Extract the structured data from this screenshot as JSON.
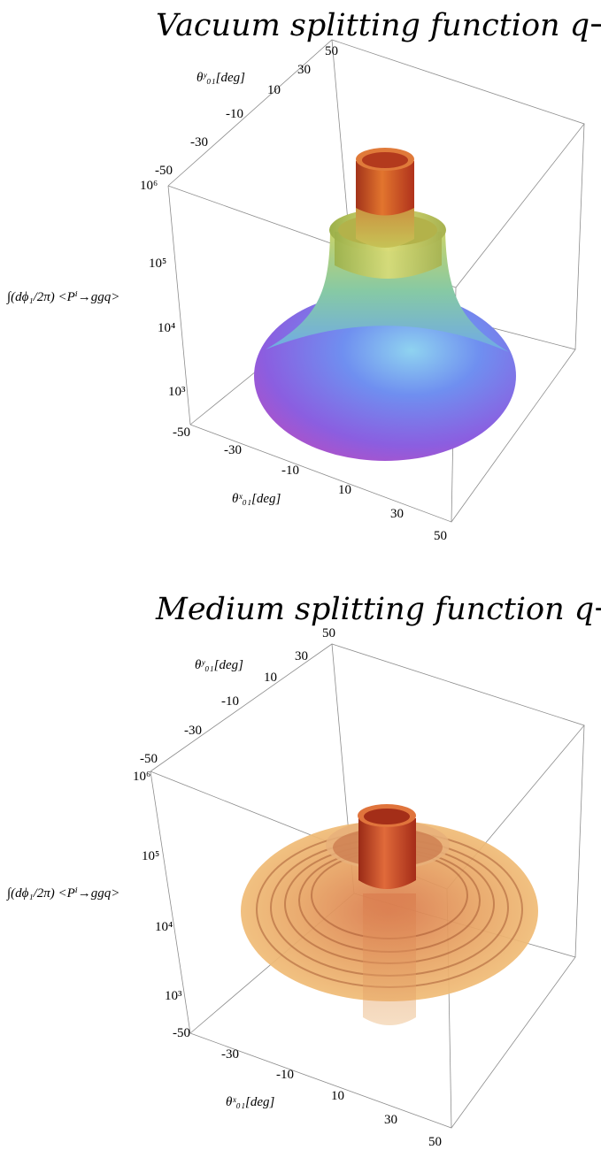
{
  "chart_data": [
    {
      "type": "surface3d",
      "title": "Vacuum splitting function q→ggq",
      "xlabel": "θˣ₀₁[deg]",
      "ylabel": "θʸ₀₁[deg]",
      "zlabel": "∫(dϕ₁/2π) <Pⁱ→ggq>",
      "x_ticks": [
        "-50",
        "-30",
        "-10",
        "10",
        "30",
        "50"
      ],
      "y_ticks": [
        "-50",
        "-30",
        "-10",
        "10",
        "30",
        "50"
      ],
      "z_ticks": [
        "10³",
        "10⁴",
        "10⁵",
        "10⁶"
      ],
      "xlim": [
        -50,
        50
      ],
      "ylim": [
        -50,
        50
      ],
      "zlim": [
        1000,
        1000000
      ],
      "zscale": "log",
      "colormap": [
        "#b24ec8",
        "#7a6cf0",
        "#6fa9f2",
        "#86d4a8",
        "#c9d36a",
        "#e08a40",
        "#c42a1a"
      ]
    },
    {
      "type": "surface3d",
      "title": "Medium splitting function q→ggq",
      "xlabel": "θˣ₀₁[deg]",
      "ylabel": "θʸ₀₁[deg]",
      "zlabel": "∫(dϕ₁/2π) <Pⁱ→ggq>",
      "x_ticks": [
        "-50",
        "-30",
        "-10",
        "10",
        "30",
        "50"
      ],
      "y_ticks": [
        "-50",
        "-30",
        "-10",
        "10",
        "30",
        "50"
      ],
      "z_ticks": [
        "10³",
        "10⁴",
        "10⁵",
        "10⁶"
      ],
      "xlim": [
        -50,
        50
      ],
      "ylim": [
        -50,
        50
      ],
      "zlim": [
        1000,
        1000000
      ],
      "zscale": "log",
      "colormap": [
        "#f1c27a",
        "#e9a05c",
        "#d06a3c",
        "#b3321e"
      ]
    }
  ]
}
